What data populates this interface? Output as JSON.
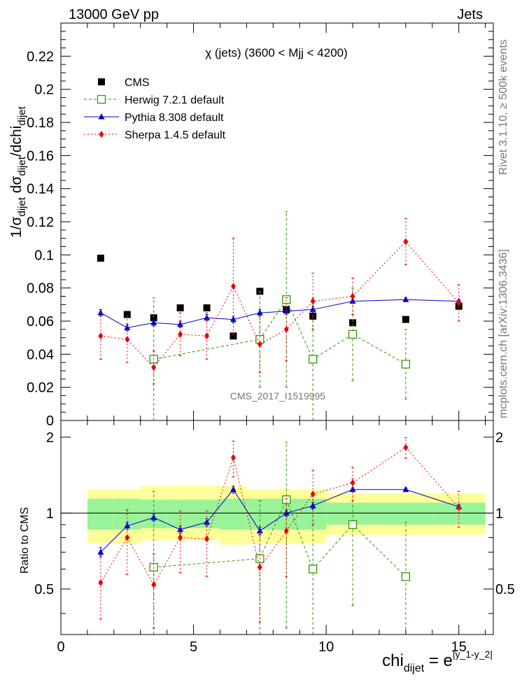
{
  "header": {
    "energy": "13000 GeV pp",
    "process": "Jets",
    "title": "χ (jets) (3600 < Mjj < 4200)",
    "watermark": "CMS_2017_I1519995",
    "side_label": "mcplots.cern.ch [arXiv:1306.3436]",
    "side_label2": "Rivet 3.1.10, ≥ 500k events"
  },
  "legend": [
    {
      "key": "cms",
      "label": "CMS",
      "color": "#000000"
    },
    {
      "key": "herwig",
      "label": "Herwig 7.2.1 default",
      "color": "#339900"
    },
    {
      "key": "pythia",
      "label": "Pythia 8.308 default",
      "color": "#0000cc"
    },
    {
      "key": "sherpa",
      "label": "Sherpa 1.4.5 default",
      "color": "#ee0000"
    }
  ],
  "chart_data": {
    "type": "scatter",
    "xlim": [
      0,
      16.3
    ],
    "x_ticks": [
      "0",
      "5",
      "10",
      "15"
    ],
    "x_tick_values": [
      0,
      5,
      10,
      15
    ],
    "xlabel": {
      "base": "chi",
      "sub": "dijet",
      "eq": " = e",
      "sup": "|y_1-y_2|"
    },
    "main": {
      "ylim": [
        0,
        0.24
      ],
      "y_ticks": [
        "0",
        "0.02",
        "0.04",
        "0.06",
        "0.08",
        "0.1",
        "0.12",
        "0.14",
        "0.16",
        "0.18",
        "0.2",
        "0.22"
      ],
      "y_tick_values": [
        0,
        0.02,
        0.04,
        0.06,
        0.08,
        0.1,
        0.12,
        0.14,
        0.16,
        0.18,
        0.2,
        0.22
      ],
      "ylabel": {
        "p1": "1/σ",
        "s1": "dijet",
        "p2": " dσ",
        "s2": "dijet",
        "p3": "/dchi",
        "s3": "dijet"
      }
    },
    "ratio": {
      "ylim": [
        0.33,
        2.33
      ],
      "y_ticks": [
        "0.5",
        "1",
        "2"
      ],
      "y_tick_values": [
        0.5,
        1,
        2
      ],
      "ylabel": "Ratio to CMS"
    },
    "bins": [
      [
        1,
        2
      ],
      [
        2,
        3
      ],
      [
        3,
        4
      ],
      [
        4,
        5
      ],
      [
        5,
        6
      ],
      [
        6,
        7
      ],
      [
        7,
        8
      ],
      [
        8,
        9
      ],
      [
        9,
        10
      ],
      [
        10,
        12
      ],
      [
        12,
        14
      ],
      [
        14,
        16
      ]
    ],
    "series": [
      {
        "name": "CMS",
        "x": [
          1.5,
          2.5,
          3.5,
          4.5,
          5.5,
          6.5,
          7.5,
          8.5,
          9.5,
          11,
          13,
          15
        ],
        "values": [
          0.098,
          0.064,
          0.062,
          0.068,
          0.068,
          0.051,
          0.078,
          0.067,
          0.063,
          0.059,
          0.061,
          0.069
        ]
      },
      {
        "name": "Herwig 7.2.1 default",
        "x": [
          3.5,
          7.5,
          8.5,
          9.5,
          11,
          13
        ],
        "values": [
          0.037,
          0.049,
          0.073,
          0.037,
          0.052,
          0.034
        ],
        "err": [
          0.037,
          0.029,
          0.053,
          0.037,
          0.028,
          0.021
        ],
        "ratio": [
          0.61,
          0.66,
          1.13,
          0.6,
          0.9,
          0.56
        ],
        "ratio_err": [
          0.61,
          0.46,
          0.78,
          0.6,
          0.47,
          0.36
        ]
      },
      {
        "name": "Pythia 8.308 default",
        "x": [
          1.5,
          2.5,
          3.5,
          4.5,
          5.5,
          6.5,
          7.5,
          8.5,
          9.5,
          11,
          13,
          15
        ],
        "values": [
          0.065,
          0.056,
          0.059,
          0.058,
          0.062,
          0.061,
          0.065,
          0.066,
          0.067,
          0.072,
          0.073,
          0.072
        ],
        "err": [
          0.002,
          0.002,
          0.002,
          0.002,
          0.002,
          0.002,
          0.002,
          0.002,
          0.002,
          0.001,
          0.001,
          0.001
        ],
        "ratio": [
          0.7,
          0.89,
          0.96,
          0.86,
          0.92,
          1.24,
          0.85,
          1.0,
          1.07,
          1.24,
          1.24,
          1.06
        ],
        "ratio_err": [
          0.03,
          0.03,
          0.03,
          0.03,
          0.03,
          0.04,
          0.03,
          0.03,
          0.03,
          0.02,
          0.02,
          0.02
        ]
      },
      {
        "name": "Sherpa 1.4.5 default",
        "x": [
          1.5,
          2.5,
          3.5,
          4.5,
          5.5,
          6.5,
          7.5,
          8.5,
          9.5,
          11,
          13,
          15
        ],
        "values": [
          0.051,
          0.049,
          0.032,
          0.052,
          0.051,
          0.081,
          0.046,
          0.055,
          0.072,
          0.075,
          0.108,
          0.071
        ],
        "err": [
          0.014,
          0.014,
          0.01,
          0.013,
          0.014,
          0.029,
          0.017,
          0.019,
          0.017,
          0.011,
          0.014,
          0.011
        ],
        "ratio": [
          0.53,
          0.8,
          0.52,
          0.8,
          0.79,
          1.66,
          0.61,
          0.85,
          1.19,
          1.32,
          1.82,
          1.05
        ],
        "ratio_err": [
          0.15,
          0.23,
          0.17,
          0.22,
          0.23,
          0.27,
          0.24,
          0.29,
          0.29,
          0.2,
          0.17,
          0.17
        ]
      }
    ],
    "ratio_bands": {
      "inner": [
        [
          0.86,
          1.14
        ],
        [
          0.86,
          1.14
        ],
        [
          0.87,
          1.13
        ],
        [
          0.87,
          1.13
        ],
        [
          0.87,
          1.13
        ],
        [
          0.86,
          1.14
        ],
        [
          0.86,
          1.14
        ],
        [
          0.86,
          1.14
        ],
        [
          0.86,
          1.14
        ],
        [
          0.9,
          1.1
        ],
        [
          0.9,
          1.1
        ],
        [
          0.9,
          1.1
        ]
      ],
      "outer": [
        [
          0.76,
          1.24
        ],
        [
          0.76,
          1.24
        ],
        [
          0.78,
          1.28
        ],
        [
          0.78,
          1.28
        ],
        [
          0.78,
          1.28
        ],
        [
          0.75,
          1.28
        ],
        [
          0.76,
          1.24
        ],
        [
          0.76,
          1.24
        ],
        [
          0.76,
          1.24
        ],
        [
          0.82,
          1.2
        ],
        [
          0.82,
          1.2
        ],
        [
          0.82,
          1.2
        ]
      ]
    }
  }
}
